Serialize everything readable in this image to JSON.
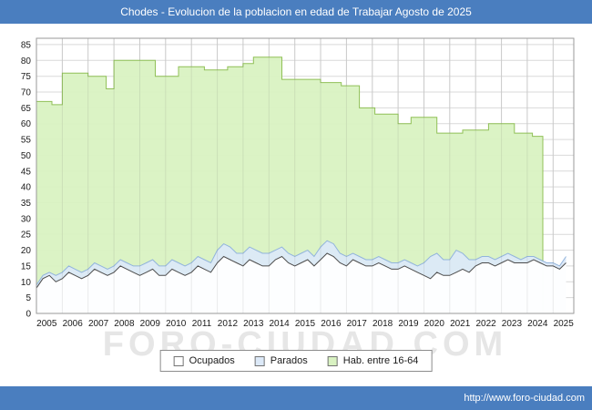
{
  "title_bar": {
    "text": "Chodes - Evolucion de la poblacion en edad de Trabajar Agosto de 2025"
  },
  "watermark": "FORO-CIUDAD.COM",
  "footer": {
    "url": "http://www.foro-ciudad.com"
  },
  "colors": {
    "titlebar": "#4a7ebf",
    "grid": "#d9d9d9",
    "grid_overlay": "rgba(110,110,110,0.14)",
    "plot_border": "#999999",
    "axis_text": "#1a1a1a",
    "watermark": "#e6e6e6"
  },
  "chart_data": {
    "type": "area",
    "title": "Chodes - Evolucion de la poblacion en edad de Trabajar Agosto de 2025",
    "xlabel": "",
    "ylabel": "",
    "grid": true,
    "legend_position": "bottom-center",
    "x_axis": {
      "min": 2005,
      "max": 2025.8,
      "tick_labels": [
        "2005",
        "2006",
        "2007",
        "2008",
        "2009",
        "2010",
        "2011",
        "2012",
        "2013",
        "2014",
        "2015",
        "2016",
        "2017",
        "2018",
        "2019",
        "2020",
        "2021",
        "2022",
        "2023",
        "2024",
        "2025"
      ]
    },
    "y_axis": {
      "min": 0,
      "max": 85,
      "step": 5,
      "plot_max": 87,
      "tick_labels": [
        "0",
        "5",
        "10",
        "15",
        "20",
        "25",
        "30",
        "35",
        "40",
        "45",
        "50",
        "55",
        "60",
        "65",
        "70",
        "75",
        "80",
        "85"
      ]
    },
    "legend": [
      {
        "label": "Ocupados",
        "fill": "#ffffff",
        "stroke": "#4d4d4d",
        "swatch_border": "#737373"
      },
      {
        "label": "Parados",
        "fill": "#dce9f8",
        "stroke": "#92b4dc",
        "swatch_border": "#737373"
      },
      {
        "label": "Hab. entre 16-64",
        "fill": "#d9f2c2",
        "stroke": "#90c057",
        "swatch_border": "#737373"
      }
    ],
    "series": {
      "ocupados": {
        "name": "Ocupados",
        "x_start": 2005,
        "x_step": 0.25,
        "values": [
          8,
          11,
          12,
          10,
          11,
          13,
          12,
          11,
          12,
          14,
          13,
          12,
          13,
          15,
          14,
          13,
          12,
          13,
          14,
          12,
          12,
          14,
          13,
          12,
          13,
          15,
          14,
          13,
          16,
          18,
          17,
          16,
          15,
          17,
          16,
          15,
          15,
          17,
          18,
          16,
          15,
          16,
          17,
          15,
          17,
          19,
          18,
          16,
          15,
          17,
          16,
          15,
          15,
          16,
          15,
          14,
          14,
          15,
          14,
          13,
          12,
          11,
          13,
          12,
          12,
          13,
          14,
          13,
          15,
          16,
          16,
          15,
          16,
          17,
          16,
          16,
          16,
          17,
          16,
          15,
          15,
          14,
          16
        ]
      },
      "parados_total": {
        "name": "Parados (upper boundary of blue band, drawn above Ocupados)",
        "x_start": 2005,
        "x_step": 0.25,
        "values": [
          9,
          12,
          13,
          12,
          13,
          15,
          14,
          13,
          14,
          16,
          15,
          14,
          15,
          17,
          16,
          15,
          15,
          16,
          17,
          15,
          15,
          17,
          16,
          15,
          16,
          18,
          17,
          16,
          20,
          22,
          21,
          19,
          19,
          21,
          20,
          19,
          19,
          20,
          21,
          19,
          18,
          19,
          20,
          18,
          21,
          23,
          22,
          19,
          18,
          19,
          18,
          17,
          17,
          18,
          17,
          16,
          16,
          17,
          16,
          15,
          16,
          18,
          19,
          17,
          17,
          20,
          19,
          17,
          17,
          18,
          18,
          17,
          18,
          19,
          18,
          17,
          18,
          18,
          17,
          16,
          16,
          15,
          18
        ]
      },
      "hab_16_64": {
        "name": "Hab. entre 16-64",
        "steps": [
          [
            2005,
            67
          ],
          [
            2005.6,
            66
          ],
          [
            2006,
            76
          ],
          [
            2007,
            75
          ],
          [
            2007.7,
            71
          ],
          [
            2008,
            80
          ],
          [
            2009.6,
            75
          ],
          [
            2010.5,
            78
          ],
          [
            2011.5,
            77
          ],
          [
            2012.4,
            78
          ],
          [
            2013,
            79
          ],
          [
            2013.4,
            81
          ],
          [
            2014.5,
            74
          ],
          [
            2016,
            73
          ],
          [
            2016.8,
            72
          ],
          [
            2017.5,
            65
          ],
          [
            2018.1,
            63
          ],
          [
            2019,
            60
          ],
          [
            2019.5,
            62
          ],
          [
            2020.5,
            57
          ],
          [
            2021.5,
            58
          ],
          [
            2022.5,
            60
          ],
          [
            2023.5,
            57
          ],
          [
            2024.2,
            56
          ]
        ],
        "end_x": 2024.6
      }
    }
  }
}
